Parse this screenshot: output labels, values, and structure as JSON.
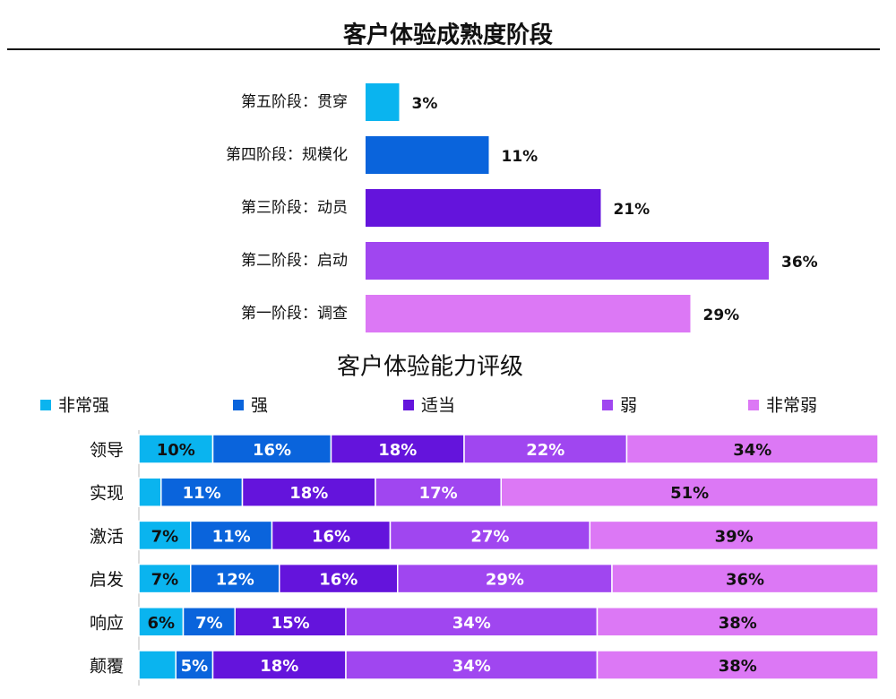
{
  "chart_data": [
    {
      "type": "barh",
      "title": "客户体验成熟度阶段",
      "categories": [
        "第五阶段：贯穿",
        "第四阶段：规模化",
        "第三阶段：动员",
        "第二阶段：启动",
        "第一阶段：调查"
      ],
      "values": [
        3,
        11,
        21,
        36,
        29
      ],
      "value_labels": [
        "3%",
        "11%",
        "21%",
        "36%",
        "29%"
      ],
      "colors": [
        "#0ab4ef",
        "#0a64dc",
        "#6414dc",
        "#a046f0",
        "#dc78f5"
      ]
    },
    {
      "type": "stacked_barh",
      "title": "客户体验能力评级",
      "categories": [
        "领导",
        "实现",
        "激活",
        "启发",
        "响应",
        "颠覆"
      ],
      "series": [
        {
          "name": "非常强",
          "color": "#0ab4ef",
          "values": [
            10,
            3,
            7,
            7,
            6,
            5
          ],
          "value_labels": [
            "10%",
            null,
            "7%",
            "7%",
            "6%",
            null
          ]
        },
        {
          "name": "强",
          "color": "#0a64dc",
          "values": [
            16,
            11,
            11,
            12,
            7,
            5
          ],
          "value_labels": [
            "16%",
            "11%",
            "11%",
            "12%",
            "7%",
            "5%"
          ]
        },
        {
          "name": "适当",
          "color": "#6414dc",
          "values": [
            18,
            18,
            16,
            16,
            15,
            18
          ],
          "value_labels": [
            "18%",
            "18%",
            "16%",
            "16%",
            "15%",
            "18%"
          ]
        },
        {
          "name": "弱",
          "color": "#a046f0",
          "values": [
            22,
            17,
            27,
            29,
            34,
            34
          ],
          "value_labels": [
            "22%",
            "17%",
            "27%",
            "29%",
            "34%",
            "34%"
          ]
        },
        {
          "name": "非常弱",
          "color": "#dc78f5",
          "values": [
            34,
            51,
            39,
            36,
            38,
            38
          ],
          "value_labels": [
            "34%",
            "51%",
            "39%",
            "36%",
            "38%",
            "38%"
          ]
        }
      ]
    }
  ]
}
